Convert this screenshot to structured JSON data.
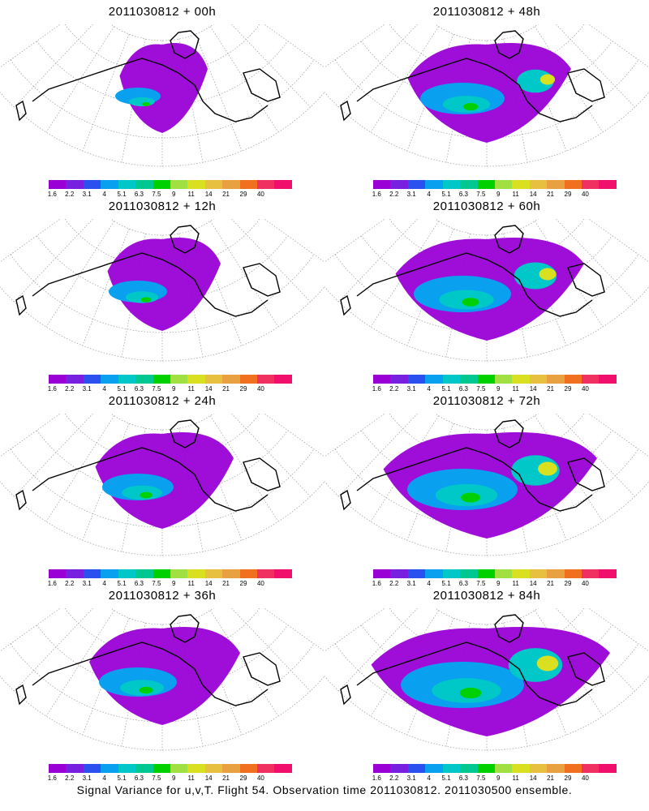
{
  "panels": [
    {
      "title": "2011030812 + 00h"
    },
    {
      "title": "2011030812 + 48h"
    },
    {
      "title": "2011030812 + 12h"
    },
    {
      "title": "2011030812 + 60h"
    },
    {
      "title": "2011030812 + 24h"
    },
    {
      "title": "2011030812 + 72h"
    },
    {
      "title": "2011030812 + 36h"
    },
    {
      "title": "2011030812 + 84h"
    }
  ],
  "colorbar": {
    "labels": [
      "1.6",
      "2.2",
      "3.1",
      "4",
      "5.1",
      "6.3",
      "7.5",
      "9",
      "11",
      "14",
      "21",
      "29",
      "40"
    ],
    "colors": [
      "#9a00d6",
      "#7820e0",
      "#2a50f0",
      "#0aa0f0",
      "#00c8c8",
      "#00c890",
      "#00d000",
      "#a0e040",
      "#d8e020",
      "#e8c040",
      "#e8a040",
      "#f07020",
      "#f03060",
      "#f0106c"
    ]
  },
  "caption": "Signal Variance for u,v,T. Flight 54. Observation time 2011030812. 2011030500 ensemble."
}
